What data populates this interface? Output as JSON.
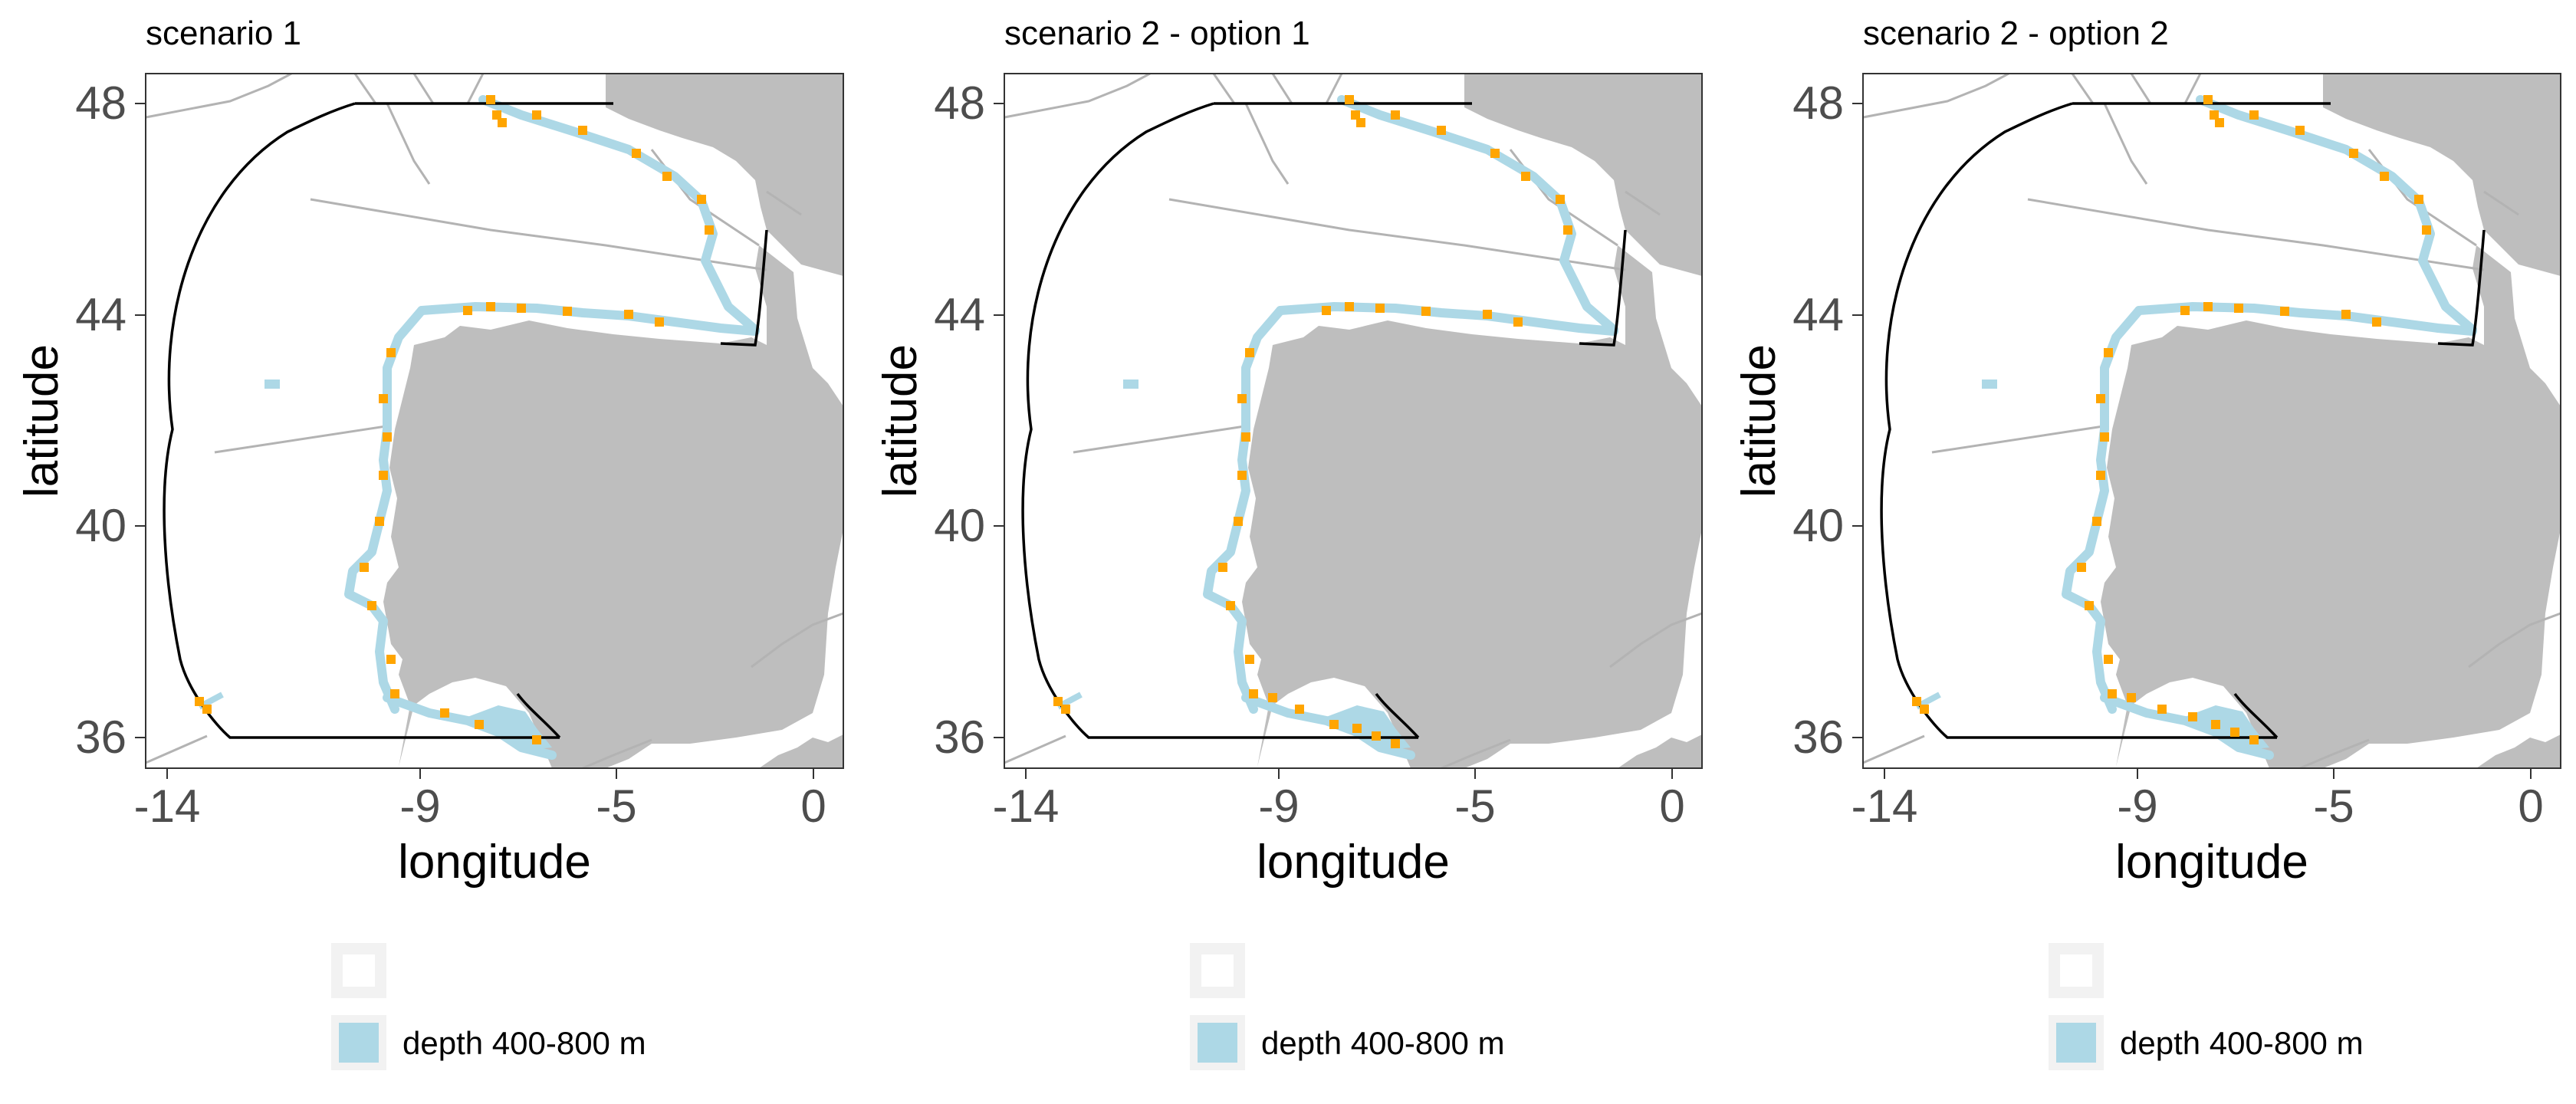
{
  "figure": {
    "colors": {
      "land": "#bebebe",
      "border": "#000000",
      "zone_line": "#b3b3b3",
      "depth_band": "#add8e6",
      "points": "#ffa500",
      "tick_text": "#4d4d4d"
    },
    "x_ticks": [
      "-14",
      "-9",
      "-5",
      "0"
    ],
    "y_ticks": [
      "48",
      "44",
      "40",
      "36"
    ],
    "xlabel": "longitude",
    "ylabel": "latitude",
    "legend": {
      "items": [
        {
          "label": "",
          "swatch": "empty"
        },
        {
          "label": "depth 400-800 m",
          "swatch": "depth"
        }
      ]
    }
  },
  "panels": [
    {
      "title": "scenario 1"
    },
    {
      "title": "scenario 2 - option 1"
    },
    {
      "title": "scenario 2 - option 2"
    }
  ]
}
